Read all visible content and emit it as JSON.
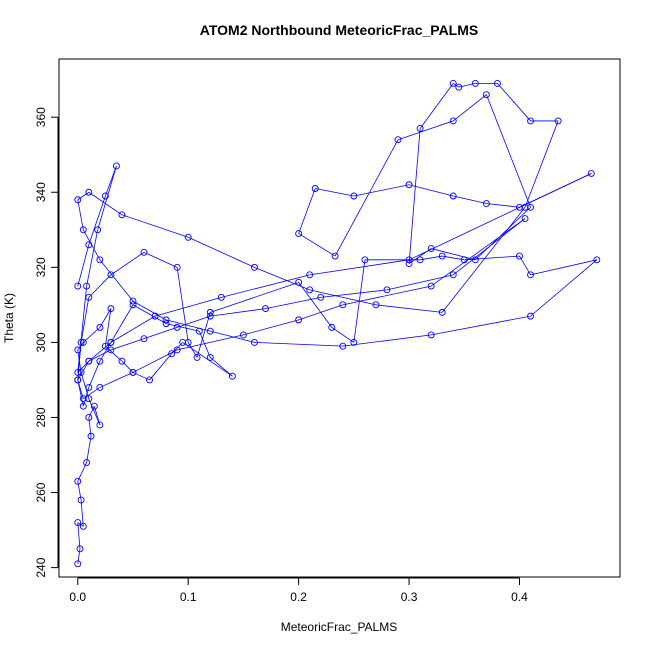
{
  "chart_data": {
    "type": "line",
    "title": "ATOM2 Northbound MeteoricFrac_PALMS",
    "xlabel": "MeteoricFrac_PALMS",
    "ylabel": "Theta (K)",
    "xlim": [
      -0.017,
      0.491
    ],
    "ylim": [
      237.5,
      375.5
    ],
    "x_ticks": [
      0.0,
      0.1,
      0.2,
      0.3,
      0.4
    ],
    "x_tick_labels": [
      "0.0",
      "0.1",
      "0.2",
      "0.3",
      "0.4"
    ],
    "y_ticks": [
      240,
      260,
      280,
      300,
      320,
      340,
      360
    ],
    "y_tick_labels": [
      "240",
      "260",
      "280",
      "300",
      "320",
      "340",
      "360"
    ],
    "grid": false,
    "marker": "open-circle",
    "color": "#0000ff",
    "series": [
      {
        "x": [
          0.0,
          0.002,
          0.0,
          0.005,
          0.003,
          0.0,
          0.008,
          0.012,
          0.01,
          0.015,
          0.02,
          0.01,
          0.003,
          0.0,
          0.005,
          0.02,
          0.03,
          0.025,
          0.04,
          0.05,
          0.065,
          0.085,
          0.095,
          0.14,
          0.12,
          0.11,
          0.08,
          0.05,
          0.03,
          0.02,
          0.01,
          0.005,
          0.0,
          0.003,
          0.01,
          0.03,
          0.06,
          0.09,
          0.1,
          0.108,
          0.12,
          0.2,
          0.23,
          0.25,
          0.26,
          0.31,
          0.33,
          0.35,
          0.4,
          0.41,
          0.47,
          0.41,
          0.32,
          0.24,
          0.16,
          0.12,
          0.08,
          0.05,
          0.02,
          0.005,
          0.0,
          0.01,
          0.04,
          0.1,
          0.16,
          0.21,
          0.27,
          0.33,
          0.405,
          0.435,
          0.41,
          0.38,
          0.36,
          0.345,
          0.34,
          0.31,
          0.3,
          0.32,
          0.36,
          0.41,
          0.37,
          0.34,
          0.29,
          0.233,
          0.2,
          0.215,
          0.25,
          0.3,
          0.34,
          0.37,
          0.4,
          0.465,
          0.3,
          0.21,
          0.13,
          0.07,
          0.03,
          0.01,
          0.0,
          0.005,
          0.02,
          0.05,
          0.09,
          0.15,
          0.2,
          0.24,
          0.32,
          0.405,
          0.34,
          0.28,
          0.22,
          0.17,
          0.12,
          0.09,
          0.06,
          0.03,
          0.01,
          0.0,
          0.008,
          0.018,
          0.035,
          0.025,
          0.01,
          0.0
        ],
        "y": [
          241,
          245,
          252,
          251,
          258,
          263,
          268,
          275,
          280,
          283,
          278,
          285,
          292,
          298,
          300,
          304,
          309,
          299,
          295,
          292,
          290,
          297,
          300,
          291,
          296,
          303,
          305,
          310,
          300,
          295,
          288,
          283,
          290,
          300,
          312,
          318,
          324,
          320,
          300,
          296,
          308,
          316,
          304,
          300,
          322,
          322,
          323,
          322,
          323,
          318,
          322,
          307,
          302,
          299,
          300,
          303,
          306,
          311,
          322,
          330,
          338,
          340,
          334,
          328,
          320,
          314,
          310,
          308,
          336,
          359,
          359,
          369,
          369,
          368,
          369,
          357,
          321,
          325,
          322,
          336,
          366,
          359,
          354,
          323,
          329,
          341,
          339,
          342,
          339,
          337,
          336,
          345,
          322,
          318,
          312,
          307,
          300,
          295,
          290,
          285,
          288,
          292,
          298,
          302,
          306,
          310,
          315,
          333,
          318,
          314,
          312,
          309,
          307,
          304,
          301,
          298,
          295,
          292,
          315,
          330,
          347,
          339,
          326,
          315
        ]
      }
    ]
  }
}
